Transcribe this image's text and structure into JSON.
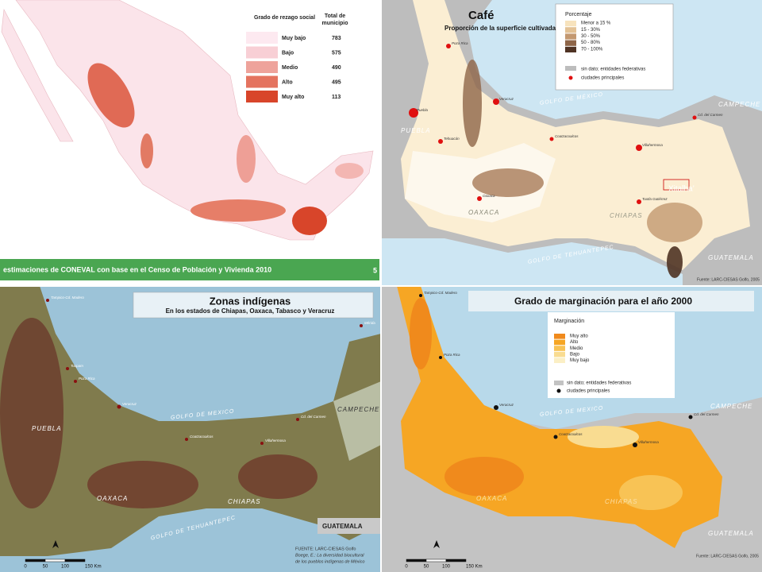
{
  "panels": [
    {
      "legend": {
        "title": "Grado de rezago social",
        "count_header": [
          "Total de",
          "municipio"
        ],
        "items": [
          {
            "label": "Muy bajo",
            "count": 783,
            "color": "#fde9f0"
          },
          {
            "label": "Bajo",
            "count": 575,
            "color": "#f8cfd5"
          },
          {
            "label": "Medio",
            "count": 490,
            "color": "#eea39b"
          },
          {
            "label": "Alto",
            "count": 495,
            "color": "#e4735f"
          },
          {
            "label": "Muy alto",
            "count": 113,
            "color": "#d8452a"
          }
        ]
      },
      "footer": "estimaciones de CONEVAL con base en el Censo de Población y Vivienda 2010",
      "page": "5"
    },
    {
      "title": "Café",
      "subtitle": "Proporción de la superficie cultivada",
      "legend": {
        "title": "Porcentaje",
        "items": [
          {
            "label": "Menor a 15 %",
            "color": "#f7e3bd"
          },
          {
            "label": "15 -  30%",
            "color": "#e3c295"
          },
          {
            "label": "30 -  50%",
            "color": "#c39870"
          },
          {
            "label": "50 -  80%",
            "color": "#8e6548"
          },
          {
            "label": "70 - 100%",
            "color": "#4f3324"
          }
        ],
        "no_data": "sin dato; entidades federativas",
        "cities": "ciudades principales"
      },
      "labels": [
        "GOLFO DE MÉXICO",
        "CAMPECHE",
        "PUEBLA",
        "OAXACA",
        "CHIAPAS",
        "GUATEMALA",
        "GOLFO DE TEHUANTEPEC",
        "Xitalha’"
      ],
      "cities": [
        "Poza Rica",
        "Veracruz",
        "Puebla",
        "Tehuacán",
        "Coatzacoalcos",
        "Cd. del Carmen",
        "Villahermosa",
        "Oaxaca",
        "Tuxtla Gutiérrez"
      ],
      "source": "Fuente: LARC-CIESAS Golfo, 2005"
    },
    {
      "title": "Zonas indígenas",
      "subtitle": "En los estados de Chiapas, Oaxaca, Tabasco y Veracruz",
      "labels": [
        "GOLFO DE MEXICO",
        "CAMPECHE",
        "PUEBLA",
        "OAXACA",
        "CHIAPAS",
        "GUATEMALA",
        "GOLFO DE TEHUANTEPEC"
      ],
      "cities": [
        "Tampico-Cd. Madero",
        "Tuxpam",
        "Poza Rica",
        "Veracruz",
        "Coatzacoalcos",
        "Cd. del Carmen",
        "Villahermosa",
        "Mérida"
      ],
      "source": [
        "FUENTE: LARC-CIESAS Golfo",
        "Boege, E.: La diversidad biocultural",
        "de los pueblos indígenas de México"
      ],
      "scale": [
        "0",
        "50",
        "100",
        "150 Km"
      ]
    },
    {
      "title": "Grado de marginación para el año 2000",
      "legend": {
        "title": "Marginación",
        "items": [
          {
            "label": "Muy alto",
            "color": "#f08a1c"
          },
          {
            "label": "Alto",
            "color": "#f6a624"
          },
          {
            "label": "Medio",
            "color": "#f8c355"
          },
          {
            "label": "Bajo",
            "color": "#f9dc91"
          },
          {
            "label": "Muy bajo",
            "color": "#fbefc5"
          }
        ],
        "no_data": "sin dato; entidades federativas",
        "cities": "ciudades principales"
      },
      "labels": [
        "GOLFO DE MEXICO",
        "CAMPECHE",
        "OAXACA",
        "CHIAPAS",
        "GUATEMALA"
      ],
      "cities": [
        "Tampico-Cd. Madero",
        "Poza Rica",
        "Veracruz",
        "Coatzacoalcos",
        "Cd. del Carmen",
        "Villahermosa"
      ],
      "source": "Fuente: LARC-CIESAS Golfo, 2005",
      "scale": [
        "0",
        "50",
        "100",
        "150 Km"
      ]
    }
  ]
}
